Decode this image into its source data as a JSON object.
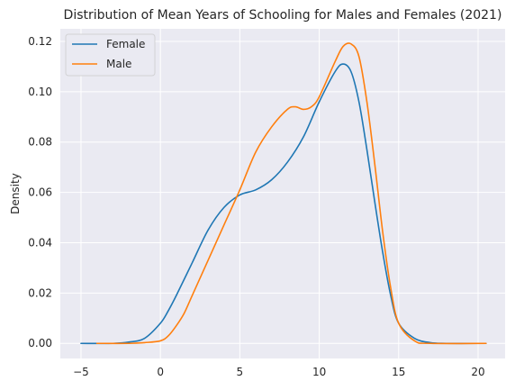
{
  "chart_data": {
    "type": "line",
    "title": "Distribution of Mean Years of Schooling for Males and Females (2021)",
    "xlabel": "",
    "ylabel": "Density",
    "xlim": [
      -6.3,
      21.7
    ],
    "ylim": [
      -0.006,
      0.125
    ],
    "xticks": [
      -5,
      0,
      5,
      10,
      15,
      20
    ],
    "yticks": [
      0.0,
      0.02,
      0.04,
      0.06,
      0.08,
      0.1,
      0.12
    ],
    "ytick_labels": [
      "0.00",
      "0.02",
      "0.04",
      "0.06",
      "0.08",
      "0.10",
      "0.12"
    ],
    "grid": true,
    "legend_position": "top-left",
    "series": [
      {
        "name": "Female",
        "color": "#1f77b4",
        "x": [
          -5,
          -3,
          -2,
          -1,
          0,
          0.5,
          1,
          2,
          3,
          4,
          5,
          6,
          7,
          8,
          9,
          10,
          11,
          11.5,
          12,
          12.5,
          13,
          13.5,
          14,
          14.5,
          15,
          16,
          17,
          18,
          20.5
        ],
        "y": [
          0.0,
          0.0,
          0.0005,
          0.002,
          0.008,
          0.013,
          0.019,
          0.032,
          0.045,
          0.054,
          0.059,
          0.061,
          0.065,
          0.072,
          0.082,
          0.096,
          0.108,
          0.111,
          0.108,
          0.096,
          0.077,
          0.056,
          0.036,
          0.019,
          0.008,
          0.002,
          0.0003,
          0.0,
          0.0
        ]
      },
      {
        "name": "Male",
        "color": "#ff7f0e",
        "x": [
          -4,
          -2,
          -1,
          0,
          0.5,
          1,
          1.5,
          2,
          3,
          4,
          5,
          6,
          7,
          8,
          8.5,
          9,
          9.5,
          10,
          11,
          11.5,
          12,
          12.5,
          13,
          13.5,
          14,
          14.5,
          15,
          16,
          17,
          20.5
        ],
        "y": [
          0.0,
          0.0,
          0.0003,
          0.001,
          0.003,
          0.007,
          0.012,
          0.019,
          0.033,
          0.047,
          0.061,
          0.076,
          0.086,
          0.093,
          0.094,
          0.093,
          0.094,
          0.098,
          0.112,
          0.118,
          0.119,
          0.114,
          0.096,
          0.071,
          0.044,
          0.022,
          0.008,
          0.001,
          0.0,
          0.0
        ]
      }
    ]
  }
}
